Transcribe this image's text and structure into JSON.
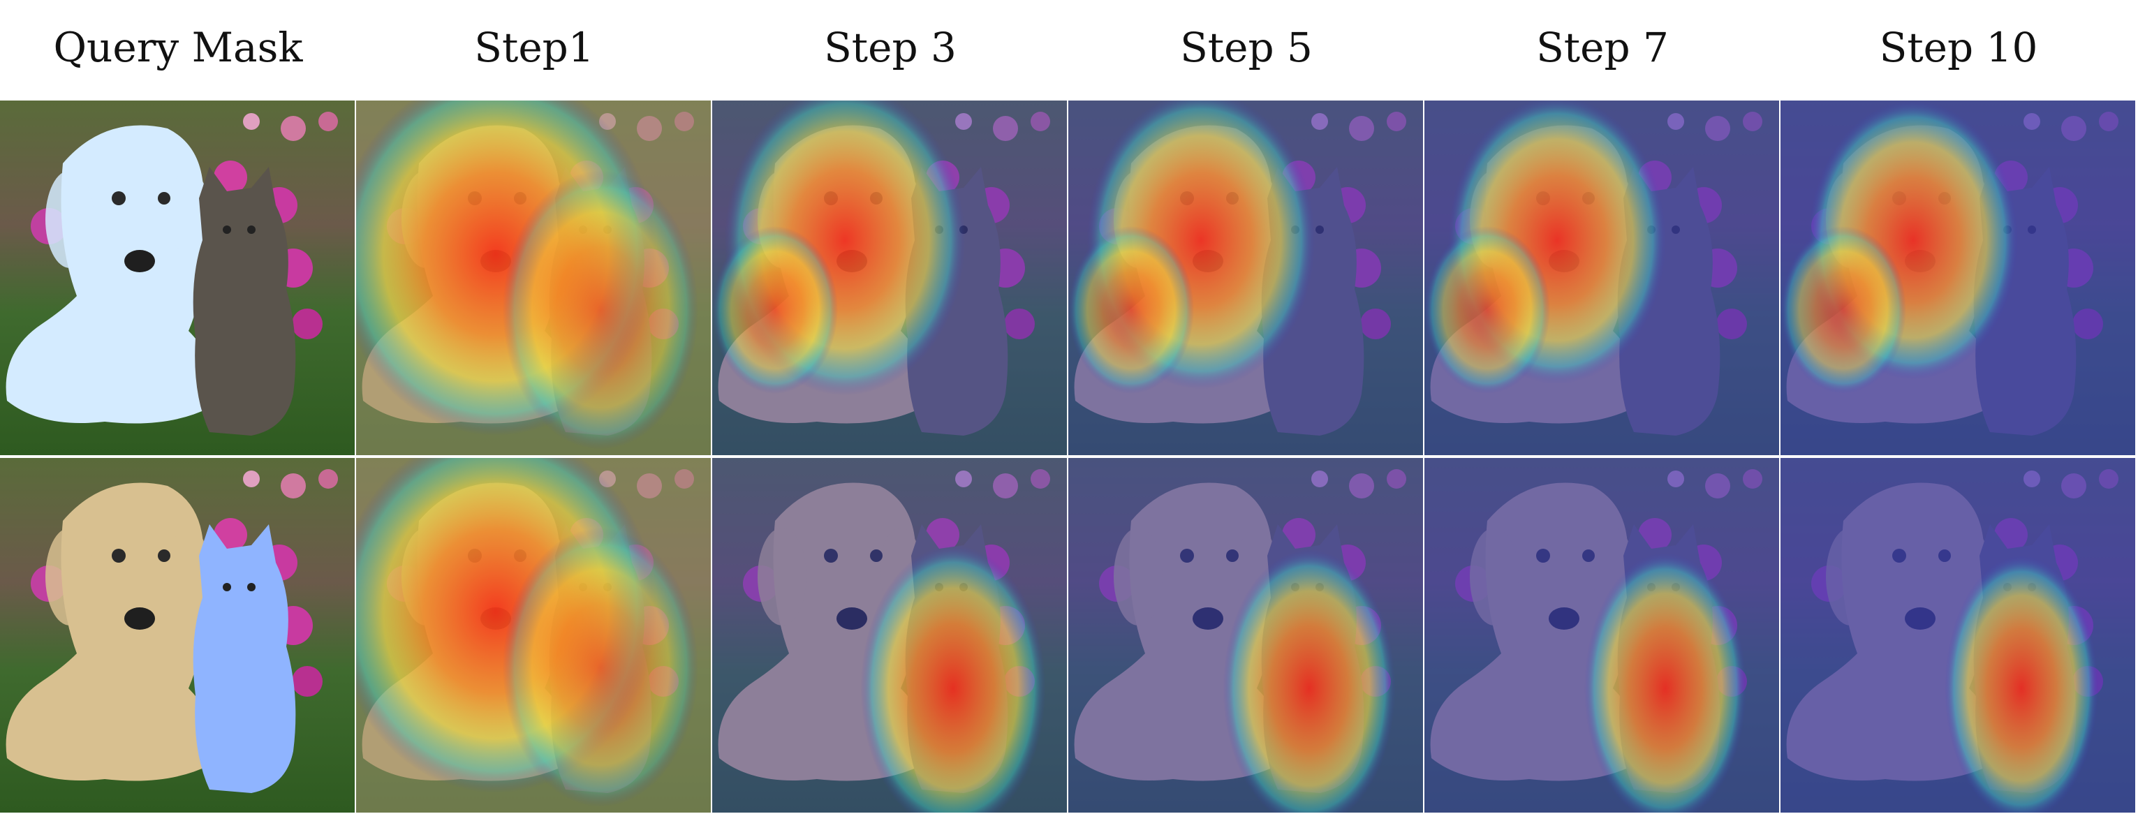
{
  "columns": [
    "Query Mask",
    "Step1",
    "Step 3",
    "Step 5",
    "Step 7",
    "Step 10"
  ],
  "rows": [
    {
      "query": "dog",
      "highlight_colors": {
        "mask": "#cfe6ff",
        "hot": "#ff3b1f",
        "cold": "#3c3fb8"
      }
    },
    {
      "query": "cat",
      "highlight_colors": {
        "mask": "#8fb4ff",
        "hot": "#ff3b1f",
        "cold": "#3c3fb8"
      }
    }
  ]
}
